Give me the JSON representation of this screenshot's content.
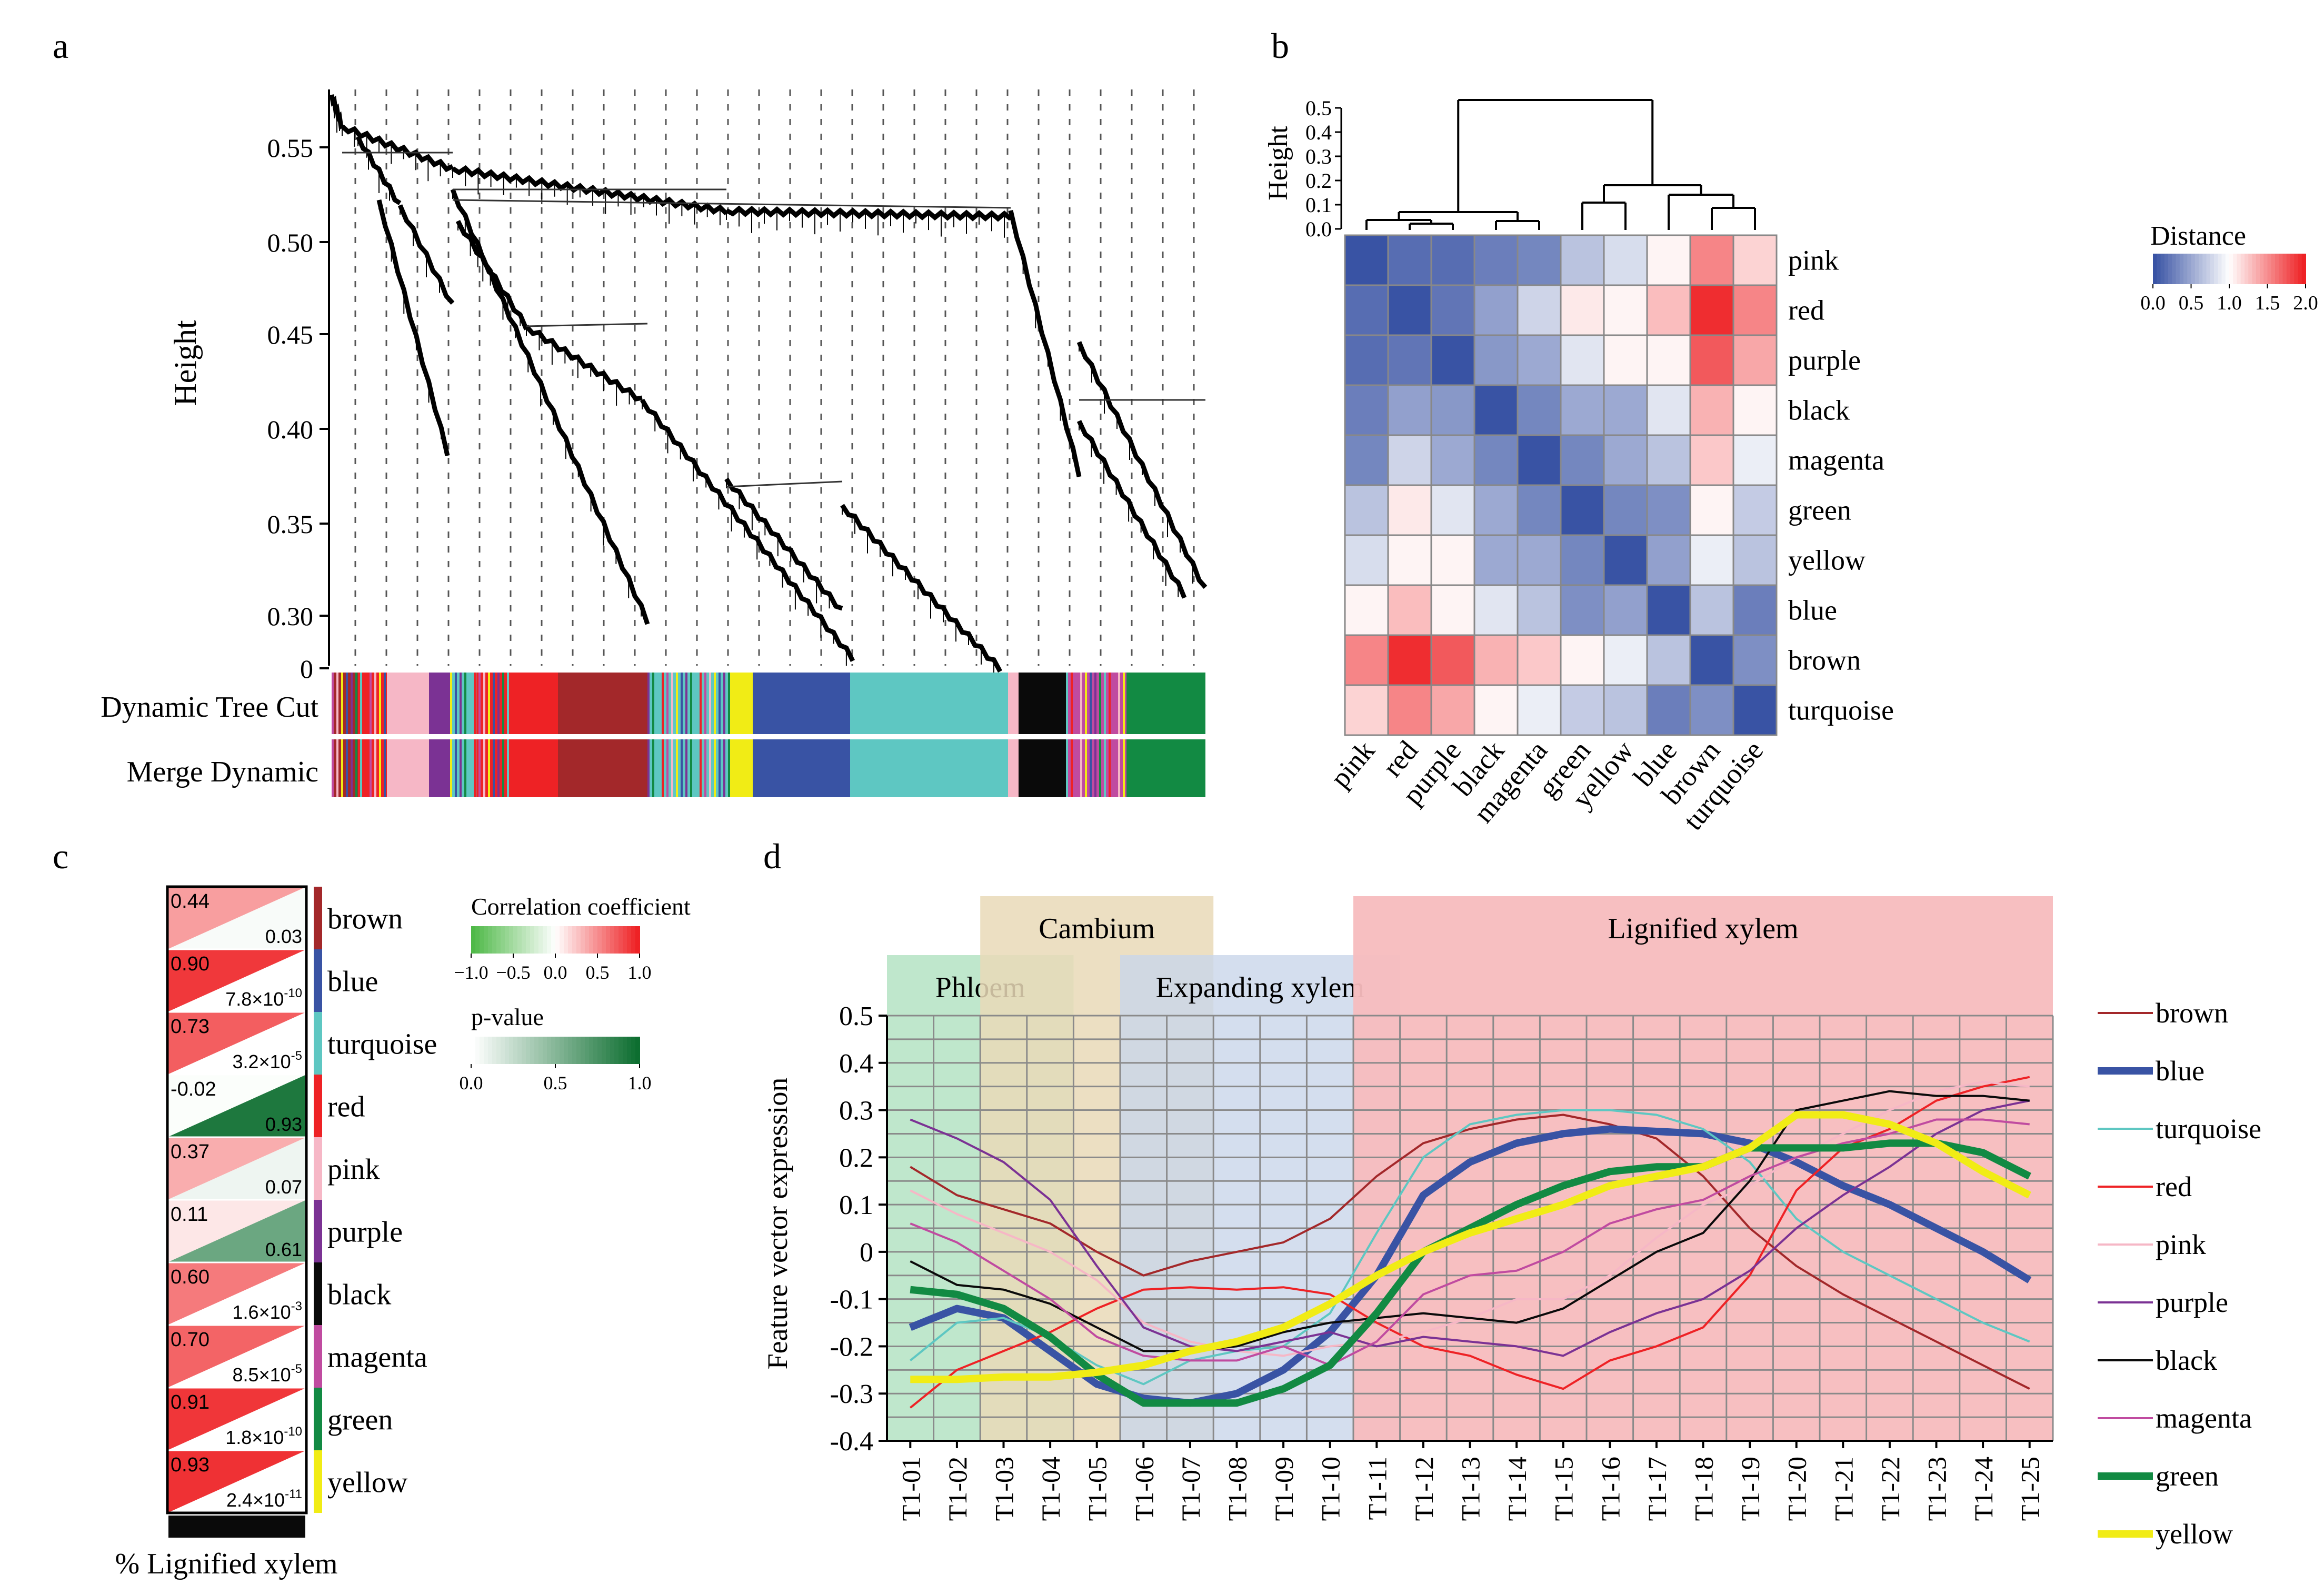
{
  "panel_labels": {
    "a": "a",
    "b": "b",
    "c": "c",
    "d": "d"
  },
  "colors": {
    "brown": "#a3282a",
    "blue": "#3953a4",
    "turquoise": "#5ec7c2",
    "red": "#ee2225",
    "pink": "#f6b7c6",
    "purple": "#7b3294",
    "black": "#0a0a0a",
    "magenta": "#c04ba0",
    "green": "#128a43",
    "yellow": "#f1ec15",
    "heat_low": "#3953a4",
    "heat_mid": "#ffffff",
    "heat_high": "#ee2225",
    "phloem_bg": "#bfe7cc",
    "cambium_bg": "#e9d9b7",
    "expanding_bg": "#c9d6ea",
    "lignified_bg": "#f7bcbe"
  },
  "chart_data": [
    {
      "panel": "a",
      "type": "dendrogram",
      "ylabel": "Height",
      "y_ticks": [
        "0.55",
        "0.50",
        "0.45",
        "0.40",
        "0.35",
        "0.30",
        "0"
      ],
      "row_labels": [
        "Dynamic Tree Cut",
        "Merge Dynamic"
      ],
      "module_strip": [
        "brown",
        "pink",
        "purple",
        "red",
        "brown",
        "turquoise",
        "yellow",
        "blue",
        "turquoise",
        "pink",
        "black",
        "magenta",
        "green"
      ]
    },
    {
      "panel": "b",
      "type": "heatmap",
      "ylabel": "Height",
      "y_ticks": [
        "0.5",
        "0.4",
        "0.3",
        "0.2",
        "0.1",
        "0.0"
      ],
      "legend_title": "Distance",
      "legend_ticks": [
        "0.0",
        "0.5",
        "1.0",
        "1.5",
        "2.0"
      ],
      "rows": [
        "pink",
        "red",
        "purple",
        "black",
        "magenta",
        "green",
        "yellow",
        "blue",
        "brown",
        "turquoise"
      ],
      "cols": [
        "pink",
        "red",
        "purple",
        "black",
        "magenta",
        "green",
        "yellow",
        "blue",
        "brown",
        "turquoise"
      ],
      "values": [
        [
          0.0,
          0.15,
          0.15,
          0.25,
          0.3,
          0.65,
          0.8,
          1.05,
          1.55,
          1.2
        ],
        [
          0.15,
          0.0,
          0.2,
          0.45,
          0.75,
          1.1,
          1.05,
          1.3,
          1.95,
          1.55
        ],
        [
          0.15,
          0.2,
          0.0,
          0.4,
          0.5,
          0.85,
          1.05,
          1.05,
          1.75,
          1.4
        ],
        [
          0.25,
          0.45,
          0.4,
          0.0,
          0.3,
          0.5,
          0.5,
          0.85,
          1.35,
          1.05
        ],
        [
          0.3,
          0.75,
          0.5,
          0.3,
          0.0,
          0.3,
          0.5,
          0.65,
          1.25,
          0.9
        ],
        [
          0.65,
          1.1,
          0.85,
          0.5,
          0.3,
          0.0,
          0.3,
          0.35,
          1.05,
          0.7
        ],
        [
          0.8,
          1.05,
          1.05,
          0.5,
          0.5,
          0.3,
          0.0,
          0.45,
          0.9,
          0.65
        ],
        [
          1.05,
          1.3,
          1.05,
          0.85,
          0.65,
          0.35,
          0.45,
          0.0,
          0.65,
          0.25
        ],
        [
          1.55,
          1.95,
          1.75,
          1.35,
          1.25,
          1.05,
          0.9,
          0.65,
          0.0,
          0.35
        ],
        [
          1.2,
          1.55,
          1.4,
          1.05,
          0.9,
          0.7,
          0.65,
          0.25,
          0.35,
          0.0
        ]
      ]
    },
    {
      "panel": "c",
      "type": "table",
      "xlabel": "% Lignified xylem",
      "corr_title": "Correlation coefficient",
      "corr_ticks": [
        "−1.0",
        "−0.5",
        "0.0",
        "0.5",
        "1.0"
      ],
      "p_title": "p-value",
      "p_ticks": [
        "0.0",
        "0.5",
        "1.0"
      ],
      "rows": [
        {
          "module": "brown",
          "r": "0.44",
          "r_num": 0.44,
          "p": "0.03",
          "p_num": 0.03
        },
        {
          "module": "blue",
          "r": "0.90",
          "r_num": 0.9,
          "p": "7.8×10",
          "p_exp": "-10",
          "p_num": 0.0
        },
        {
          "module": "turquoise",
          "r": "0.73",
          "r_num": 0.73,
          "p": "3.2×10",
          "p_exp": "-5",
          "p_num": 0.0
        },
        {
          "module": "red",
          "r": "-0.02",
          "r_num": -0.02,
          "p": "0.93",
          "p_num": 0.93
        },
        {
          "module": "pink",
          "r": "0.37",
          "r_num": 0.37,
          "p": "0.07",
          "p_num": 0.07
        },
        {
          "module": "purple",
          "r": "0.11",
          "r_num": 0.11,
          "p": "0.61",
          "p_num": 0.61
        },
        {
          "module": "black",
          "r": "0.60",
          "r_num": 0.6,
          "p": "1.6×10",
          "p_exp": "-3",
          "p_num": 0.0016
        },
        {
          "module": "magenta",
          "r": "0.70",
          "r_num": 0.7,
          "p": "8.5×10",
          "p_exp": "-5",
          "p_num": 0.0
        },
        {
          "module": "green",
          "r": "0.91",
          "r_num": 0.91,
          "p": "1.8×10",
          "p_exp": "-10",
          "p_num": 0.0
        },
        {
          "module": "yellow",
          "r": "0.93",
          "r_num": 0.93,
          "p": "2.4×10",
          "p_exp": "-11",
          "p_num": 0.0
        }
      ]
    },
    {
      "panel": "d",
      "type": "line",
      "ylabel": "Feature vector expression",
      "ylim": [
        -0.4,
        0.5
      ],
      "y_ticks": [
        "0.5",
        "0.4",
        "0.3",
        "0.2",
        "0.1",
        "0",
        "-0.1",
        "-0.2",
        "-0.3",
        "-0.4"
      ],
      "categories": [
        "T1-01",
        "T1-02",
        "T1-03",
        "T1-04",
        "T1-05",
        "T1-06",
        "T1-07",
        "T1-08",
        "T1-09",
        "T1-10",
        "T1-11",
        "T1-12",
        "T1-13",
        "T1-14",
        "T1-15",
        "T1-16",
        "T1-17",
        "T1-18",
        "T1-19",
        "T1-20",
        "T1-21",
        "T1-22",
        "T1-23",
        "T1-24",
        "T1-25"
      ],
      "regions": [
        {
          "label": "Phloem",
          "start": "T1-01",
          "end": "T1-04"
        },
        {
          "label": "Cambium",
          "start": "T1-03",
          "end": "T1-07"
        },
        {
          "label": "Expanding xylem",
          "start": "T1-06",
          "end": "T1-11"
        },
        {
          "label": "Lignified xylem",
          "start": "T1-11",
          "end": "T1-25"
        }
      ],
      "legend": "right",
      "series": [
        {
          "name": "brown",
          "values": [
            0.18,
            0.12,
            0.09,
            0.06,
            0.0,
            -0.05,
            -0.02,
            0.0,
            0.02,
            0.07,
            0.16,
            0.23,
            0.26,
            0.28,
            0.29,
            0.27,
            0.24,
            0.16,
            0.05,
            -0.03,
            -0.09,
            -0.14,
            -0.19,
            -0.24,
            -0.29
          ]
        },
        {
          "name": "blue",
          "values": [
            -0.16,
            -0.12,
            -0.14,
            -0.21,
            -0.28,
            -0.31,
            -0.32,
            -0.3,
            -0.25,
            -0.17,
            -0.05,
            0.12,
            0.19,
            0.23,
            0.25,
            0.26,
            0.255,
            0.25,
            0.23,
            0.19,
            0.14,
            0.1,
            0.05,
            0.0,
            -0.06
          ]
        },
        {
          "name": "turquoise",
          "values": [
            -0.23,
            -0.15,
            -0.14,
            -0.18,
            -0.24,
            -0.28,
            -0.23,
            -0.21,
            -0.2,
            -0.13,
            0.04,
            0.2,
            0.27,
            0.29,
            0.3,
            0.3,
            0.29,
            0.26,
            0.19,
            0.07,
            0.0,
            -0.05,
            -0.1,
            -0.15,
            -0.19
          ]
        },
        {
          "name": "red",
          "values": [
            -0.33,
            -0.25,
            -0.21,
            -0.17,
            -0.12,
            -0.08,
            -0.075,
            -0.08,
            -0.075,
            -0.09,
            -0.15,
            -0.2,
            -0.22,
            -0.26,
            -0.29,
            -0.23,
            -0.2,
            -0.16,
            -0.05,
            0.13,
            0.22,
            0.26,
            0.32,
            0.35,
            0.37
          ]
        },
        {
          "name": "pink",
          "values": [
            0.13,
            0.08,
            0.04,
            0.0,
            -0.06,
            -0.15,
            -0.19,
            -0.21,
            -0.22,
            -0.2,
            -0.19,
            -0.17,
            -0.14,
            -0.1,
            -0.1,
            -0.05,
            0.03,
            0.1,
            0.14,
            0.2,
            0.25,
            0.3,
            0.34,
            0.36,
            0.35
          ]
        },
        {
          "name": "purple",
          "values": [
            0.28,
            0.24,
            0.19,
            0.11,
            -0.03,
            -0.16,
            -0.2,
            -0.21,
            -0.19,
            -0.17,
            -0.2,
            -0.18,
            -0.19,
            -0.2,
            -0.22,
            -0.17,
            -0.13,
            -0.1,
            -0.04,
            0.05,
            0.12,
            0.18,
            0.25,
            0.3,
            0.32
          ]
        },
        {
          "name": "black",
          "values": [
            -0.02,
            -0.07,
            -0.08,
            -0.11,
            -0.16,
            -0.21,
            -0.21,
            -0.2,
            -0.17,
            -0.15,
            -0.14,
            -0.13,
            -0.14,
            -0.15,
            -0.12,
            -0.06,
            0.0,
            0.04,
            0.15,
            0.3,
            0.32,
            0.34,
            0.33,
            0.33,
            0.32
          ]
        },
        {
          "name": "magenta",
          "values": [
            0.06,
            0.02,
            -0.04,
            -0.1,
            -0.18,
            -0.22,
            -0.23,
            -0.23,
            -0.2,
            -0.24,
            -0.19,
            -0.09,
            -0.05,
            -0.04,
            0.0,
            0.06,
            0.09,
            0.11,
            0.16,
            0.2,
            0.23,
            0.25,
            0.28,
            0.28,
            0.27
          ]
        },
        {
          "name": "green",
          "values": [
            -0.08,
            -0.09,
            -0.12,
            -0.18,
            -0.26,
            -0.32,
            -0.32,
            -0.32,
            -0.29,
            -0.24,
            -0.13,
            0.0,
            0.05,
            0.1,
            0.14,
            0.17,
            0.18,
            0.18,
            0.22,
            0.22,
            0.22,
            0.23,
            0.23,
            0.21,
            0.16
          ]
        },
        {
          "name": "yellow",
          "values": [
            -0.27,
            -0.27,
            -0.265,
            -0.265,
            -0.255,
            -0.24,
            -0.21,
            -0.19,
            -0.16,
            -0.11,
            -0.05,
            0.0,
            0.04,
            0.07,
            0.1,
            0.14,
            0.16,
            0.18,
            0.22,
            0.29,
            0.29,
            0.27,
            0.23,
            0.17,
            0.12
          ]
        }
      ]
    }
  ]
}
